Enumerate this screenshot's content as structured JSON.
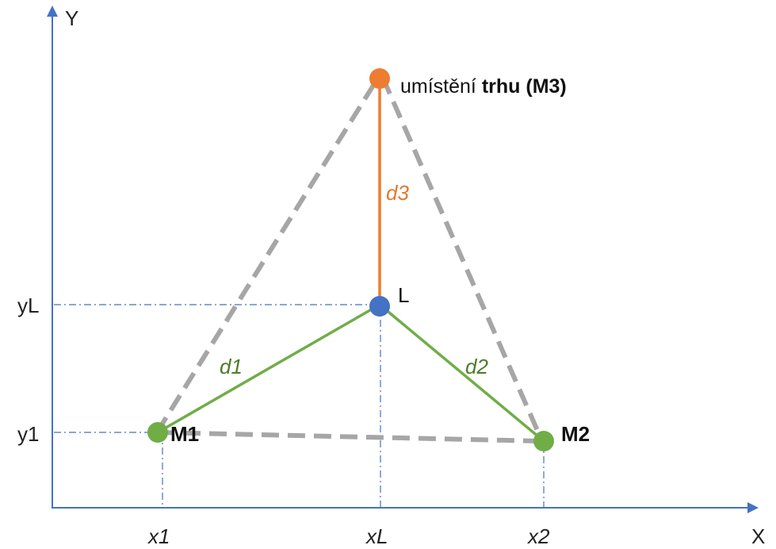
{
  "axes": {
    "x_label": "X",
    "y_label": "Y",
    "x_ticks": [
      "x1",
      "xL",
      "x2"
    ],
    "y_ticks": [
      "yL",
      "y1"
    ]
  },
  "points": {
    "m1": "M1",
    "m2": "M2",
    "l": "L",
    "m3_prefix": "umístění ",
    "m3_bold": "trhu (M3)"
  },
  "distances": {
    "d1": "d1",
    "d2": "d2",
    "d3": "d3"
  },
  "colors": {
    "axis": "#4472c4",
    "guide": "#4472c4",
    "triangle": "#a6a6a6",
    "green_line": "#70ad47",
    "orange_line": "#ed7d31",
    "point_l": "#4472c4",
    "point_m": "#70ad47",
    "point_m3": "#ed7d31"
  }
}
